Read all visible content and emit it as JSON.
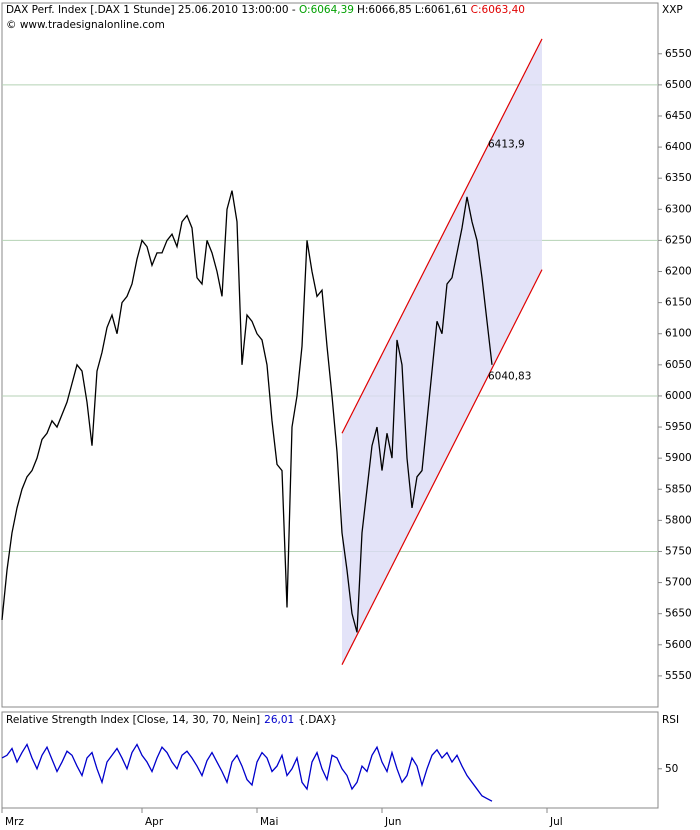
{
  "chart_data": [
    {
      "type": "line",
      "title": "DAX Perf. Index [.DAX  1 Stunde] 25.06.2010 13:00:00 -",
      "ohlc": [
        {
          "text": "O:6064,39",
          "color": "#00a000"
        },
        {
          "text": "H:6066,85",
          "color": "#000000"
        },
        {
          "text": "L:6061,61",
          "color": "#000000"
        },
        {
          "text": "C:6063,40",
          "color": "#e00000"
        }
      ],
      "subtitle": "© www.tradesignalonline.com",
      "axis_name": "XXP",
      "color": "#000000",
      "values": [
        5640,
        5720,
        5780,
        5820,
        5850,
        5870,
        5880,
        5900,
        5930,
        5940,
        5960,
        5950,
        5970,
        5990,
        6020,
        6050,
        6040,
        5990,
        5920,
        6040,
        6070,
        6110,
        6130,
        6100,
        6150,
        6160,
        6180,
        6220,
        6250,
        6240,
        6210,
        6230,
        6230,
        6250,
        6260,
        6240,
        6280,
        6290,
        6270,
        6190,
        6180,
        6250,
        6230,
        6200,
        6160,
        6300,
        6330,
        6280,
        6050,
        6130,
        6120,
        6100,
        6090,
        6050,
        5960,
        5890,
        5880,
        5660,
        5950,
        6000,
        6080,
        6250,
        6200,
        6160,
        6170,
        6080,
        6000,
        5910,
        5780,
        5720,
        5650,
        5620,
        5780,
        5850,
        5920,
        5950,
        5880,
        5940,
        5900,
        6090,
        6050,
        5900,
        5820,
        5870,
        5880,
        5960,
        6040,
        6120,
        6100,
        6180,
        6190,
        6230,
        6270,
        6320,
        6280,
        6250,
        6190,
        6120,
        6050
      ],
      "xlim": [
        0,
        130
      ],
      "ylim": [
        5500,
        6630
      ],
      "yticks": [
        5550,
        5600,
        5650,
        5700,
        5750,
        5800,
        5850,
        5900,
        5950,
        6000,
        6050,
        6100,
        6150,
        6200,
        6250,
        6300,
        6350,
        6400,
        6450,
        6500,
        6550
      ],
      "gridlines": [
        5750,
        6000,
        6250,
        6500
      ],
      "channel": {
        "x": [
          68,
          108
        ],
        "upper": [
          5940,
          6574
        ],
        "lower": [
          5568,
          6203
        ],
        "line_color": "#e00000",
        "fill": "#dcdcf6"
      },
      "annotations": [
        {
          "text": "6413,9",
          "value": 6413.9,
          "color": "#e00000"
        },
        {
          "text": "6040,83",
          "value": 6040.83,
          "color": "#e00000"
        }
      ]
    },
    {
      "type": "line",
      "title": "Relative Strength Index [Close, 14, 30, 70, Nein]",
      "last_label": "26,01",
      "last_color": "#0000cc",
      "suffix": "{.DAX}",
      "axis_name": "RSI",
      "color": "#0000cc",
      "values": [
        58,
        60,
        65,
        55,
        62,
        68,
        58,
        50,
        60,
        66,
        57,
        48,
        55,
        63,
        60,
        52,
        45,
        58,
        62,
        50,
        40,
        55,
        60,
        65,
        58,
        50,
        62,
        68,
        60,
        55,
        48,
        58,
        66,
        62,
        55,
        50,
        60,
        63,
        58,
        52,
        45,
        56,
        62,
        55,
        48,
        40,
        55,
        60,
        52,
        42,
        38,
        55,
        62,
        58,
        48,
        52,
        60,
        45,
        50,
        58,
        40,
        35,
        55,
        62,
        50,
        42,
        60,
        58,
        50,
        45,
        35,
        40,
        52,
        48,
        60,
        66,
        55,
        48,
        62,
        50,
        40,
        45,
        58,
        52,
        38,
        50,
        60,
        64,
        58,
        62,
        55,
        60,
        52,
        45,
        40,
        35,
        30,
        28,
        26
      ],
      "xlim": [
        0,
        130
      ],
      "ylim": [
        21,
        92
      ],
      "yticks": [
        50
      ],
      "xticks": [
        {
          "value": 0,
          "label": "Mrz"
        },
        {
          "value": 28,
          "label": "Apr"
        },
        {
          "value": 51,
          "label": "Mai"
        },
        {
          "value": 76,
          "label": "Jun"
        },
        {
          "value": 109,
          "label": "Jul"
        }
      ]
    }
  ]
}
